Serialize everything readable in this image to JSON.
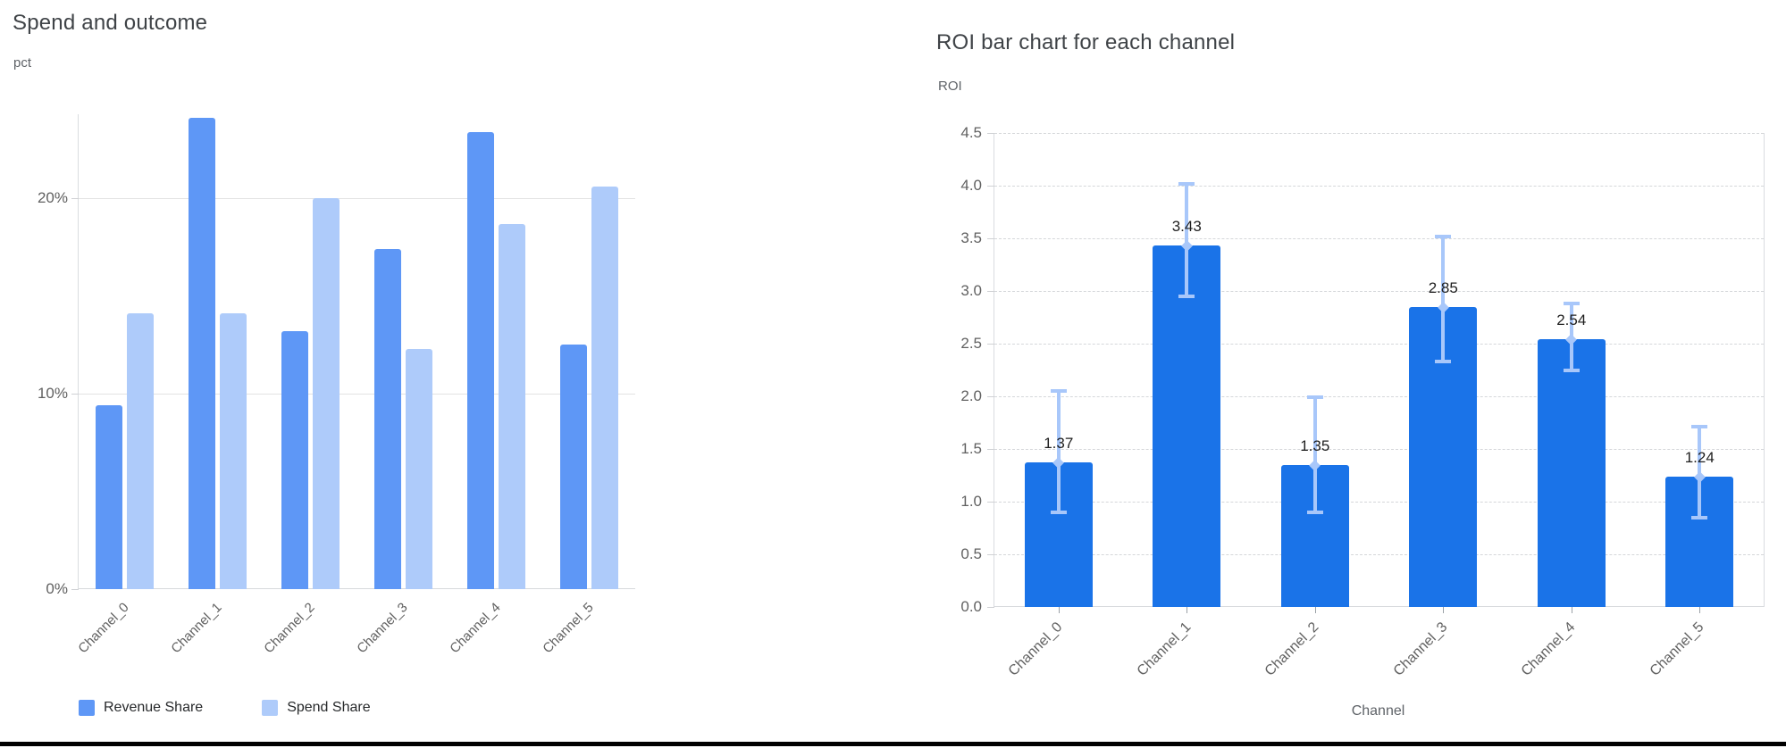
{
  "window": {
    "background": "#ffffff",
    "bottom_edge_color": "#000000"
  },
  "chart_data": [
    {
      "type": "bar",
      "title": "Spend and outcome",
      "y_unit_label": "pct",
      "xlabel": "",
      "categories": [
        "Channel_0",
        "Channel_1",
        "Channel_2",
        "Channel_3",
        "Channel_4",
        "Channel_5"
      ],
      "series": [
        {
          "name": "Revenue Share",
          "color": "#5e97f6",
          "values": [
            9.4,
            24.1,
            13.2,
            17.4,
            23.4,
            12.5
          ]
        },
        {
          "name": "Spend Share",
          "color": "#aecbfa",
          "values": [
            14.1,
            14.1,
            20.0,
            12.3,
            18.7,
            20.6
          ]
        }
      ],
      "ylim": [
        0,
        24.3
      ],
      "yticks": [
        {
          "value": 0,
          "label": "0%"
        },
        {
          "value": 10,
          "label": "10%"
        },
        {
          "value": 20,
          "label": "20%"
        }
      ],
      "grid": "solid-horizontal",
      "legend_position": "bottom"
    },
    {
      "type": "bar",
      "title": "ROI bar chart for each channel",
      "y_unit_label": "ROI",
      "xlabel": "Channel",
      "categories": [
        "Channel_0",
        "Channel_1",
        "Channel_2",
        "Channel_3",
        "Channel_4",
        "Channel_5"
      ],
      "series": [
        {
          "name": "ROI",
          "color": "#1a73e8",
          "values": [
            1.37,
            3.43,
            1.35,
            2.85,
            2.54,
            1.24
          ]
        }
      ],
      "value_labels": [
        "1.37",
        "3.43",
        "1.35",
        "2.85",
        "2.54",
        "1.24"
      ],
      "error_bars": {
        "color": "#a8c7fa",
        "low": [
          0.9,
          2.95,
          0.9,
          2.33,
          2.25,
          0.85
        ],
        "high": [
          2.05,
          4.02,
          1.99,
          3.52,
          2.88,
          1.71
        ]
      },
      "ylim": [
        0,
        4.5
      ],
      "ytick_values": [
        0,
        0.5,
        1,
        1.5,
        2,
        2.5,
        3,
        3.5,
        4,
        4.5
      ],
      "ytick_labels": [
        "0.0",
        "0.5",
        "1.0",
        "1.5",
        "2.0",
        "2.5",
        "3.0",
        "3.5",
        "4.0",
        "4.5"
      ],
      "grid": "dashed-horizontal",
      "legend_position": "none"
    }
  ]
}
